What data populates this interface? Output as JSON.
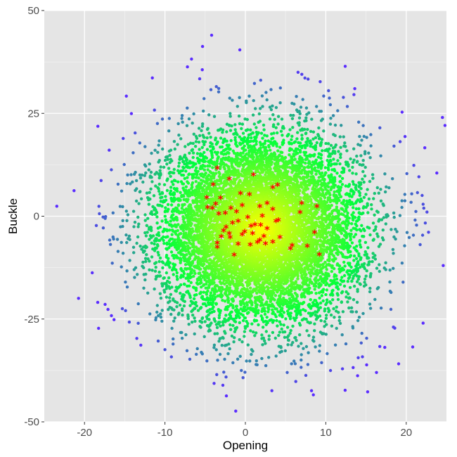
{
  "chart_data": {
    "type": "scatter",
    "title": "",
    "xlabel": "Opening",
    "ylabel": "Buckle",
    "xlim": [
      -25,
      25
    ],
    "ylim": [
      -50,
      50
    ],
    "x_ticks": [
      -20,
      -10,
      0,
      10,
      20
    ],
    "y_ticks": [
      -50,
      -25,
      0,
      25,
      50
    ],
    "x_tick_labels": [
      "-20",
      "-10",
      "0",
      "10",
      "20"
    ],
    "y_tick_labels": [
      "-50",
      "-25",
      "0",
      "25",
      "50"
    ],
    "grid": true,
    "legend": "none",
    "colors": {
      "panel_background": "#e5e5e5",
      "grid_major": "#ffffff",
      "gradient_center": "#ffff00",
      "gradient_mid": "#00ff3c",
      "gradient_outer": "#5a2cff",
      "highlight": "#ff0000"
    },
    "series": [
      {
        "marker": "dot",
        "description_points": "dense cloud of points centered near (2, -3), colored by distance from center (yellow -> green -> blue-purple)",
        "center": [
          2,
          -3
        ],
        "spread": [
          6.3,
          11.5
        ],
        "count": 9000,
        "outliers": [
          [
            -21.3,
            6.2
          ],
          [
            -4.2,
            44
          ],
          [
            15.2,
            -42.7
          ],
          [
            -14.8,
            29.2
          ],
          [
            -15.3,
            -22.5
          ],
          [
            24.5,
            24
          ],
          [
            20.8,
            -31.8
          ],
          [
            -7.2,
            36.3
          ],
          [
            -6.7,
            38.2
          ],
          [
            13.6,
            31
          ],
          [
            16.3,
            -38
          ],
          [
            9.3,
            32.7
          ],
          [
            -11.3,
            25.8
          ],
          [
            -12.5,
            12.5
          ],
          [
            23.8,
            10.5
          ],
          [
            24.6,
            -12
          ],
          [
            22.1,
            -26
          ],
          [
            -8.9,
            -25.5
          ],
          [
            -9.2,
            -34.2
          ],
          [
            -2.8,
            -41.1
          ],
          [
            7.4,
            33.6
          ],
          [
            5.2,
            -38
          ],
          [
            13.4,
            -36.8
          ],
          [
            -0.5,
            -37.5
          ]
        ]
      },
      {
        "marker": "asterisk",
        "color": "#ff0000",
        "points": [
          [
            -3.5,
            11.5
          ],
          [
            1,
            9.9
          ],
          [
            -2,
            8.9
          ],
          [
            4,
            7.4
          ],
          [
            -4,
            7.5
          ],
          [
            3.4,
            6.8
          ],
          [
            -0.6,
            5.4
          ],
          [
            -4.8,
            4.4
          ],
          [
            0.5,
            5.1
          ],
          [
            -3.1,
            4.3
          ],
          [
            7,
            3
          ],
          [
            8.9,
            2.2
          ],
          [
            -4.7,
            2
          ],
          [
            -3.7,
            2.8
          ],
          [
            -4.1,
            1.8
          ],
          [
            2.7,
            3
          ],
          [
            1.8,
            2.2
          ],
          [
            -1.8,
            1.8
          ],
          [
            -0.4,
            2.5
          ],
          [
            -2.5,
            0.6
          ],
          [
            3.4,
            1.5
          ],
          [
            6.8,
            0.8
          ],
          [
            -1.1,
            0.9
          ],
          [
            -3.3,
            0.4
          ],
          [
            0.3,
            -0.4
          ],
          [
            2.1,
            -0.1
          ],
          [
            4.1,
            -1.1
          ],
          [
            3.8,
            -1.4
          ],
          [
            -0.9,
            -1.4
          ],
          [
            1.2,
            -2.2
          ],
          [
            1.9,
            -2.3
          ],
          [
            -1.6,
            -1.8
          ],
          [
            0.7,
            -2.6
          ],
          [
            2.7,
            -3.2
          ],
          [
            -2.4,
            -2.8
          ],
          [
            -0.1,
            -3.9
          ],
          [
            8.6,
            -4.1
          ],
          [
            -2.7,
            -3.7
          ],
          [
            0.9,
            -4.4
          ],
          [
            -0.4,
            -4.6
          ],
          [
            -1.9,
            -5.3
          ],
          [
            4.3,
            -5.3
          ],
          [
            2.3,
            -5
          ],
          [
            -3,
            -5.1
          ],
          [
            1.8,
            -6
          ],
          [
            3.4,
            -6.4
          ],
          [
            -3.5,
            -6.7
          ],
          [
            -0.9,
            -6.9
          ],
          [
            0.6,
            -7.1
          ],
          [
            -3.5,
            -7.7
          ],
          [
            2.5,
            -6.8
          ],
          [
            5.8,
            -7.3
          ],
          [
            7.7,
            -7.4
          ],
          [
            5.6,
            -8
          ],
          [
            9.2,
            -9.5
          ],
          [
            -1.4,
            -9.6
          ],
          [
            1.5,
            -6.5
          ],
          [
            -2,
            -4.4
          ]
        ]
      }
    ]
  }
}
